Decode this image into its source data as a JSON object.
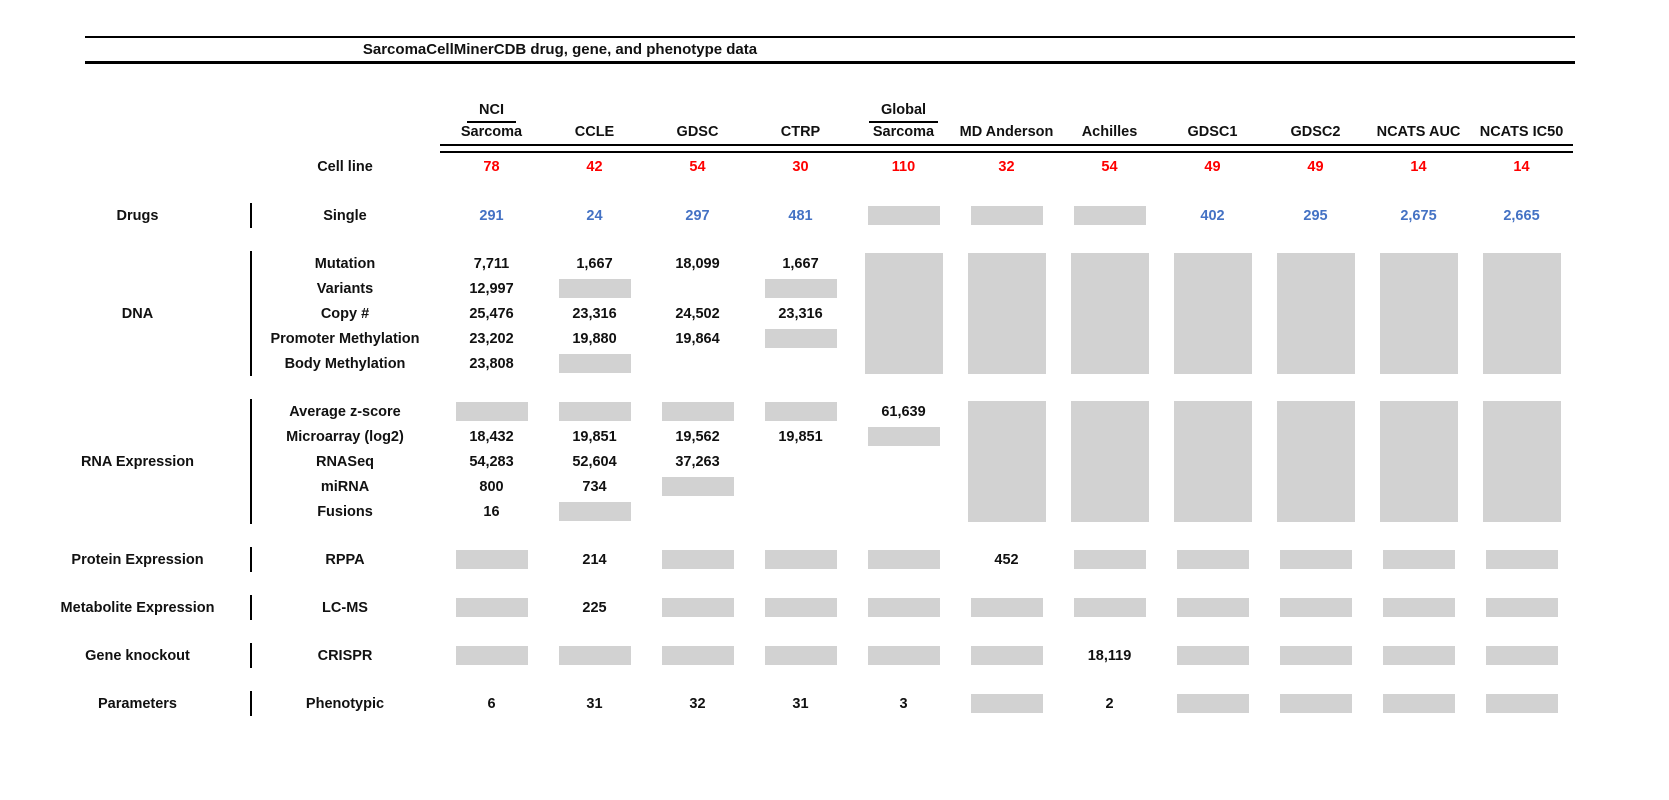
{
  "chart_data": {
    "type": "table",
    "title": "SarcomaCellMinerCDB drug, gene, and phenotype data",
    "colors": {
      "red": "#fe0000",
      "blue": "#4472c4",
      "gray": "#d2d2d2"
    },
    "gray_cell_token": "GRAY",
    "columns": [
      {
        "top": "NCI",
        "name": "Sarcoma"
      },
      {
        "top": "",
        "name": "CCLE"
      },
      {
        "top": "",
        "name": "GDSC"
      },
      {
        "top": "",
        "name": "CTRP"
      },
      {
        "top": "Global",
        "name": "Sarcoma"
      },
      {
        "top": "",
        "name": "MD Anderson"
      },
      {
        "top": "",
        "name": "Achilles"
      },
      {
        "top": "",
        "name": "GDSC1"
      },
      {
        "top": "",
        "name": "GDSC2"
      },
      {
        "top": "",
        "name": "NCATS AUC"
      },
      {
        "top": "",
        "name": "NCATS IC50"
      }
    ],
    "cell_line": {
      "label": "Cell line",
      "counts": [
        "78",
        "42",
        "54",
        "30",
        "110",
        "32",
        "54",
        "49",
        "49",
        "14",
        "14"
      ]
    },
    "sections": [
      {
        "category": "Drugs",
        "rows": [
          {
            "label": "Single",
            "color": "blue",
            "cells": [
              "291",
              "24",
              "297",
              "481",
              "GRAY",
              "GRAY",
              "GRAY",
              "402",
              "295",
              "2,675",
              "2,665"
            ]
          }
        ]
      },
      {
        "category": "DNA",
        "gray_block_columns": [
          4,
          5,
          6,
          7,
          8,
          9,
          10
        ],
        "rows": [
          {
            "label": "Mutation",
            "cells": [
              "7,711",
              "1,667",
              "18,099",
              "1,667",
              "",
              "",
              "",
              "",
              "",
              "",
              ""
            ]
          },
          {
            "label": "Variants",
            "cells": [
              "12,997",
              "GRAY",
              "",
              "GRAY",
              "",
              "",
              "",
              "",
              "",
              "",
              ""
            ]
          },
          {
            "label": "Copy #",
            "cells": [
              "25,476",
              "23,316",
              "24,502",
              "23,316",
              "",
              "",
              "",
              "",
              "",
              "",
              ""
            ]
          },
          {
            "label": "Promoter Methylation",
            "cells": [
              "23,202",
              "19,880",
              "19,864",
              "GRAY",
              "",
              "",
              "",
              "",
              "",
              "",
              ""
            ]
          },
          {
            "label": "Body Methylation",
            "cells": [
              "23,808",
              "GRAY",
              "",
              "",
              "",
              "",
              "",
              "",
              "",
              "",
              ""
            ]
          }
        ]
      },
      {
        "category": "RNA Expression",
        "gray_block_columns": [
          5,
          6,
          7,
          8,
          9,
          10
        ],
        "rows": [
          {
            "label": "Average z-score",
            "cells": [
              "GRAY",
              "GRAY",
              "GRAY",
              "GRAY",
              "61,639",
              "",
              "",
              "",
              "",
              "",
              ""
            ]
          },
          {
            "label": "Microarray (log2)",
            "cells": [
              "18,432",
              "19,851",
              "19,562",
              "19,851",
              "GRAY",
              "",
              "",
              "",
              "",
              "",
              ""
            ]
          },
          {
            "label": "RNASeq",
            "cells": [
              "54,283",
              "52,604",
              "37,263",
              "",
              "",
              "",
              "",
              "",
              "",
              "",
              ""
            ]
          },
          {
            "label": "miRNA",
            "cells": [
              "800",
              "734",
              "GRAY",
              "",
              "",
              "",
              "",
              "",
              "",
              "",
              ""
            ]
          },
          {
            "label": "Fusions",
            "cells": [
              "16",
              "GRAY",
              "",
              "",
              "",
              "",
              "",
              "",
              "",
              "",
              ""
            ]
          }
        ]
      },
      {
        "category": "Protein Expression",
        "rows": [
          {
            "label": "RPPA",
            "cells": [
              "GRAY",
              "214",
              "GRAY",
              "GRAY",
              "GRAY",
              "452",
              "GRAY",
              "GRAY",
              "GRAY",
              "GRAY",
              "GRAY"
            ]
          }
        ]
      },
      {
        "category": "Metabolite Expression",
        "rows": [
          {
            "label": "LC-MS",
            "cells": [
              "GRAY",
              "225",
              "GRAY",
              "GRAY",
              "GRAY",
              "GRAY",
              "GRAY",
              "GRAY",
              "GRAY",
              "GRAY",
              "GRAY"
            ]
          }
        ]
      },
      {
        "category": "Gene knockout",
        "rows": [
          {
            "label": "CRISPR",
            "cells": [
              "GRAY",
              "GRAY",
              "GRAY",
              "GRAY",
              "GRAY",
              "GRAY",
              "18,119",
              "GRAY",
              "GRAY",
              "GRAY",
              "GRAY"
            ]
          }
        ]
      },
      {
        "category": "Parameters",
        "rows": [
          {
            "label": "Phenotypic",
            "cells": [
              "6",
              "31",
              "32",
              "31",
              "3",
              "GRAY",
              "2",
              "GRAY",
              "GRAY",
              "GRAY",
              "GRAY"
            ]
          }
        ]
      }
    ]
  }
}
